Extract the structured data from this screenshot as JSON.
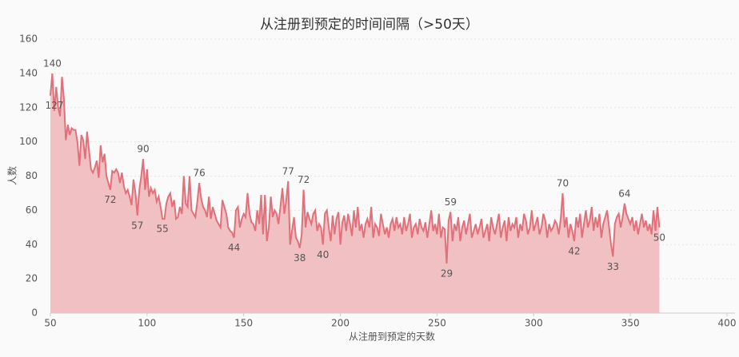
{
  "chart_data": {
    "type": "area",
    "title": "从注册到预定的时间间隔（>50天）",
    "x_label": "从注册到预定的天数",
    "y_label": "人数",
    "color": "#e0707a",
    "fill": "#f0c0c3",
    "xlim": [
      50,
      400
    ],
    "xticks": [
      50,
      100,
      150,
      200,
      250,
      300,
      350,
      400
    ],
    "ylim": [
      0,
      160
    ],
    "yticks": [
      0,
      20,
      40,
      60,
      80,
      100,
      120,
      140,
      160
    ],
    "grid": true,
    "x": [
      50,
      51,
      52,
      53,
      54,
      55,
      56,
      57,
      58,
      59,
      60,
      61,
      62,
      63,
      64,
      65,
      66,
      67,
      68,
      69,
      70,
      71,
      72,
      73,
      74,
      75,
      76,
      77,
      78,
      79,
      80,
      81,
      82,
      83,
      84,
      85,
      86,
      87,
      88,
      89,
      90,
      91,
      92,
      93,
      94,
      95,
      96,
      97,
      98,
      99,
      100,
      101,
      102,
      103,
      104,
      105,
      106,
      107,
      108,
      109,
      110,
      111,
      112,
      113,
      114,
      115,
      116,
      117,
      118,
      119,
      120,
      121,
      122,
      123,
      124,
      125,
      126,
      127,
      128,
      129,
      130,
      131,
      132,
      133,
      134,
      135,
      136,
      137,
      138,
      139,
      140,
      141,
      142,
      143,
      144,
      145,
      146,
      147,
      148,
      149,
      150,
      151,
      152,
      153,
      154,
      155,
      156,
      157,
      158,
      159,
      160,
      161,
      162,
      163,
      164,
      165,
      166,
      167,
      168,
      169,
      170,
      171,
      172,
      173,
      174,
      175,
      176,
      177,
      178,
      179,
      180,
      181,
      182,
      183,
      184,
      185,
      186,
      187,
      188,
      189,
      190,
      191,
      192,
      193,
      194,
      195,
      196,
      197,
      198,
      199,
      200,
      201,
      202,
      203,
      204,
      205,
      206,
      207,
      208,
      209,
      210,
      211,
      212,
      213,
      214,
      215,
      216,
      217,
      218,
      219,
      220,
      221,
      222,
      223,
      224,
      225,
      226,
      227,
      228,
      229,
      230,
      231,
      232,
      233,
      234,
      235,
      236,
      237,
      238,
      239,
      240,
      241,
      242,
      243,
      244,
      245,
      246,
      247,
      248,
      249,
      250,
      251,
      252,
      253,
      254,
      255,
      256,
      257,
      258,
      259,
      260,
      261,
      262,
      263,
      264,
      265,
      266,
      267,
      268,
      269,
      270,
      271,
      272,
      273,
      274,
      275,
      276,
      277,
      278,
      279,
      280,
      281,
      282,
      283,
      284,
      285,
      286,
      287,
      288,
      289,
      290,
      291,
      292,
      293,
      294,
      295,
      296,
      297,
      298,
      299,
      300,
      301,
      302,
      303,
      304,
      305,
      306,
      307,
      308,
      309,
      310,
      311,
      312,
      313,
      314,
      315,
      316,
      317,
      318,
      319,
      320,
      321,
      322,
      323,
      324,
      325,
      326,
      327,
      328,
      329,
      330,
      331,
      332,
      333,
      334,
      335,
      336,
      337,
      338,
      339,
      340,
      341,
      342,
      343,
      344,
      345,
      346,
      347,
      348,
      349,
      350,
      351,
      352,
      353,
      354,
      355,
      356,
      357,
      358,
      359,
      360,
      361,
      362,
      363,
      364,
      365
    ],
    "values": [
      127,
      140,
      118,
      132,
      120,
      115,
      138,
      125,
      101,
      110,
      104,
      108,
      107,
      107,
      100,
      86,
      104,
      101,
      90,
      106,
      95,
      84,
      82,
      85,
      89,
      79,
      98,
      88,
      93,
      80,
      76,
      72,
      83,
      82,
      84,
      82,
      76,
      82,
      74,
      70,
      72,
      68,
      63,
      78,
      70,
      57,
      72,
      80,
      90,
      72,
      84,
      68,
      73,
      70,
      72,
      65,
      68,
      62,
      55,
      55,
      64,
      68,
      70,
      62,
      66,
      55,
      56,
      62,
      58,
      80,
      64,
      62,
      80,
      60,
      58,
      56,
      65,
      76,
      67,
      62,
      60,
      56,
      68,
      55,
      62,
      58,
      54,
      52,
      50,
      66,
      62,
      58,
      50,
      48,
      47,
      44,
      60,
      62,
      50,
      55,
      58,
      56,
      70,
      58,
      53,
      52,
      48,
      60,
      52,
      69,
      46,
      69,
      42,
      50,
      68,
      56,
      60,
      58,
      52,
      62,
      73,
      58,
      66,
      77,
      40,
      48,
      56,
      44,
      42,
      38,
      46,
      72,
      50,
      59,
      55,
      52,
      58,
      60,
      48,
      52,
      50,
      40,
      58,
      60,
      50,
      42,
      57,
      46,
      55,
      59,
      40,
      53,
      57,
      48,
      58,
      52,
      45,
      60,
      50,
      62,
      48,
      52,
      44,
      52,
      55,
      50,
      62,
      44,
      52,
      50,
      45,
      58,
      52,
      46,
      50,
      44,
      52,
      55,
      48,
      56,
      50,
      52,
      46,
      56,
      48,
      52,
      58,
      44,
      50,
      52,
      46,
      55,
      50,
      48,
      53,
      44,
      52,
      60,
      48,
      52,
      46,
      58,
      44,
      50,
      49,
      29,
      54,
      59,
      42,
      52,
      48,
      56,
      42,
      50,
      54,
      46,
      52,
      58,
      44,
      48,
      52,
      46,
      50,
      55,
      44,
      48,
      52,
      42,
      56,
      50,
      46,
      52,
      58,
      44,
      50,
      54,
      42,
      56,
      48,
      52,
      50,
      56,
      44,
      52,
      48,
      58,
      54,
      46,
      50,
      60,
      48,
      52,
      56,
      46,
      50,
      58,
      54,
      44,
      52,
      48,
      50,
      54,
      52,
      46,
      55,
      70,
      50,
      56,
      44,
      52,
      48,
      42,
      56,
      50,
      58,
      44,
      52,
      60,
      50,
      54,
      62,
      48,
      56,
      50,
      58,
      44,
      52,
      56,
      60,
      50,
      40,
      33,
      52,
      56,
      58,
      50,
      56,
      64,
      58,
      55,
      52,
      56,
      48,
      54,
      46,
      52,
      58,
      50,
      54,
      48,
      52,
      46,
      60,
      48,
      62,
      50
    ],
    "label_x": [
      50,
      51,
      81,
      95,
      98,
      108,
      127,
      145,
      173,
      179,
      181,
      191,
      255,
      257,
      315,
      321,
      341,
      347,
      365
    ]
  }
}
